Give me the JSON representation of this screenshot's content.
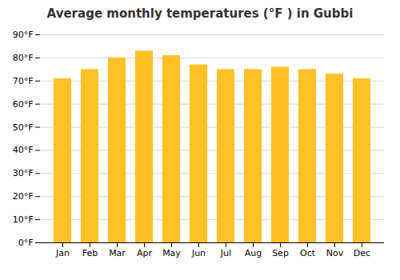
{
  "chart_data": {
    "type": "bar",
    "title": "Average monthly temperatures (°F ) in Gubbi",
    "categories": [
      "Jan",
      "Feb",
      "Mar",
      "Apr",
      "May",
      "Jun",
      "Jul",
      "Aug",
      "Sep",
      "Oct",
      "Nov",
      "Dec"
    ],
    "values": [
      71,
      75,
      80,
      83,
      81,
      77,
      75,
      75,
      76,
      75,
      73,
      71
    ],
    "color": "#FFC125",
    "ylim": [
      0,
      90
    ],
    "yticks": [
      {
        "value": 0,
        "label": "0°F"
      },
      {
        "value": 10,
        "label": "10°F"
      },
      {
        "value": 20,
        "label": "20°F"
      },
      {
        "value": 30,
        "label": "30°F"
      },
      {
        "value": 40,
        "label": "40°F"
      },
      {
        "value": 50,
        "label": "50°F"
      },
      {
        "value": 60,
        "label": "60°F"
      },
      {
        "value": 70,
        "label": "70°F"
      },
      {
        "value": 80,
        "label": "80°F"
      },
      {
        "value": 90,
        "label": "90°F"
      }
    ],
    "grid": true
  }
}
